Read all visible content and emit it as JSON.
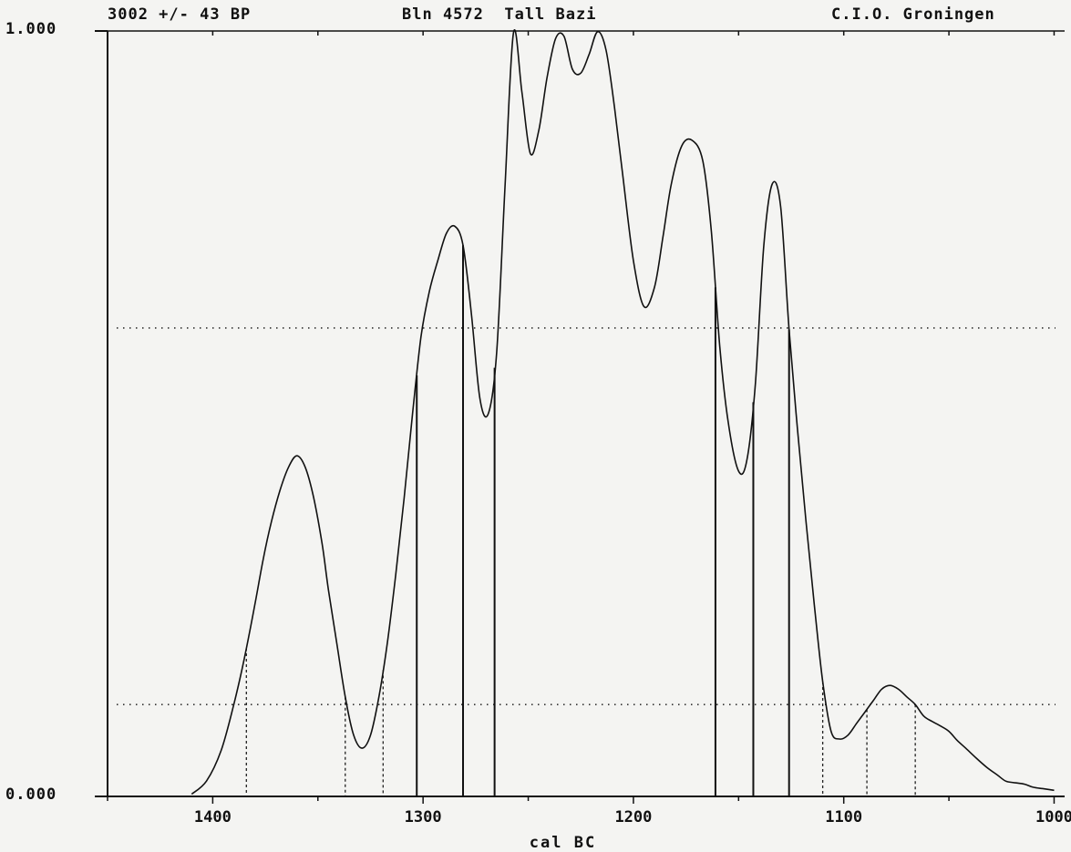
{
  "header": {
    "left": "3002 +/- 43 BP",
    "center": "Bln 4572  Tall Bazi",
    "right": "C.I.O. Groningen"
  },
  "chart_data": {
    "type": "line",
    "title": "3002 +/- 43 BP   Bln 4572  Tall Bazi   C.I.O. Groningen",
    "xlabel": "cal BC",
    "ylabel": "",
    "x_reversed": true,
    "xlim": [
      1450,
      995
    ],
    "ylim": [
      0,
      1
    ],
    "x_ticks": [
      1400,
      1300,
      1200,
      1100,
      1000
    ],
    "x_tick_labels": [
      "1400",
      "1300",
      "1200",
      "1100",
      "1000"
    ],
    "y_tick_labels": [
      "1.000",
      "0.000"
    ],
    "series": [
      {
        "values_x": [
          1410,
          1403,
          1396,
          1390,
          1385,
          1380,
          1376,
          1372,
          1368,
          1364,
          1360,
          1356,
          1352,
          1348,
          1345,
          1341,
          1337,
          1333,
          1329,
          1325,
          1321,
          1317,
          1313,
          1309,
          1305,
          1301,
          1297,
          1293,
          1289,
          1285,
          1281,
          1277,
          1273,
          1269,
          1265,
          1261,
          1257,
          1253,
          1249,
          1245,
          1241,
          1237,
          1233,
          1229,
          1225,
          1221,
          1217,
          1213,
          1209,
          1205,
          1200,
          1195,
          1190,
          1186,
          1182,
          1177,
          1172,
          1167,
          1163,
          1159,
          1155,
          1150,
          1146,
          1142,
          1138,
          1134,
          1130,
          1126,
          1122,
          1118,
          1114,
          1110,
          1106,
          1102,
          1098,
          1094,
          1090,
          1086,
          1082,
          1078,
          1074,
          1070,
          1066,
          1062,
          1058,
          1054,
          1050,
          1046,
          1042,
          1037,
          1032,
          1027,
          1023,
          1019,
          1014,
          1010,
          1005,
          1000
        ],
        "values_y": [
          0.003,
          0.02,
          0.06,
          0.12,
          0.18,
          0.25,
          0.31,
          0.36,
          0.4,
          0.43,
          0.445,
          0.43,
          0.39,
          0.33,
          0.27,
          0.2,
          0.13,
          0.08,
          0.063,
          0.08,
          0.13,
          0.2,
          0.29,
          0.39,
          0.5,
          0.6,
          0.66,
          0.7,
          0.735,
          0.745,
          0.72,
          0.63,
          0.52,
          0.5,
          0.58,
          0.8,
          0.998,
          0.92,
          0.84,
          0.87,
          0.94,
          0.99,
          0.993,
          0.95,
          0.945,
          0.97,
          0.999,
          0.975,
          0.9,
          0.81,
          0.7,
          0.64,
          0.665,
          0.73,
          0.8,
          0.85,
          0.857,
          0.83,
          0.74,
          0.59,
          0.49,
          0.425,
          0.44,
          0.54,
          0.72,
          0.8,
          0.77,
          0.61,
          0.48,
          0.36,
          0.25,
          0.15,
          0.085,
          0.075,
          0.08,
          0.095,
          0.11,
          0.125,
          0.14,
          0.145,
          0.14,
          0.13,
          0.12,
          0.105,
          0.098,
          0.092,
          0.085,
          0.073,
          0.063,
          0.05,
          0.038,
          0.028,
          0.02,
          0.018,
          0.016,
          0.012,
          0.01,
          0.008
        ]
      }
    ],
    "hlines_y": [
      0.612,
      0.12
    ],
    "dotted_drops_x": [
      1384,
      1337,
      1319,
      1110,
      1089,
      1066
    ],
    "solid_drops_x": [
      1303,
      1281,
      1266,
      1161,
      1143,
      1126
    ],
    "grid": false
  }
}
